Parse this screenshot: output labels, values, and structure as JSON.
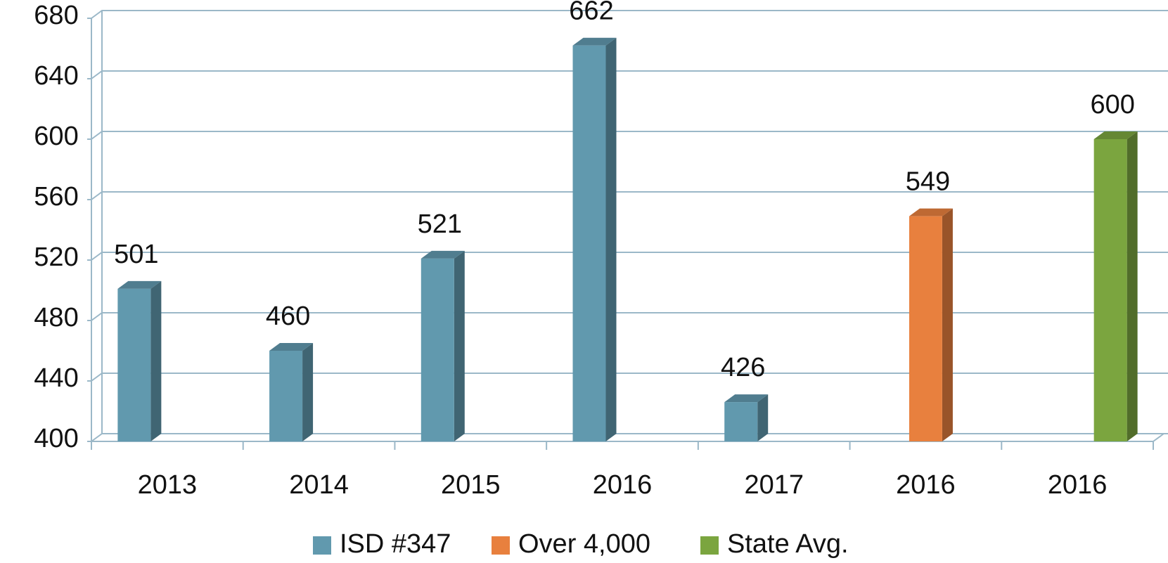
{
  "chart_data": {
    "type": "bar3d",
    "categories": [
      "2013",
      "2014",
      "2015",
      "2016",
      "2017",
      "2016",
      "2016"
    ],
    "series": [
      {
        "name": "ISD #347",
        "color": "#6199ae",
        "values": [
          501,
          460,
          521,
          662,
          426,
          null,
          null
        ]
      },
      {
        "name": "Over 4,000",
        "color": "#e8803e",
        "values": [
          null,
          null,
          null,
          null,
          null,
          549,
          null
        ]
      },
      {
        "name": "State Avg.",
        "color": "#7ba53f",
        "values": [
          null,
          null,
          null,
          null,
          null,
          null,
          600
        ]
      }
    ],
    "ylim": [
      400,
      680
    ],
    "yticks": [
      400,
      440,
      480,
      520,
      560,
      600,
      640,
      680
    ],
    "grid": true,
    "legend": "bottom"
  }
}
